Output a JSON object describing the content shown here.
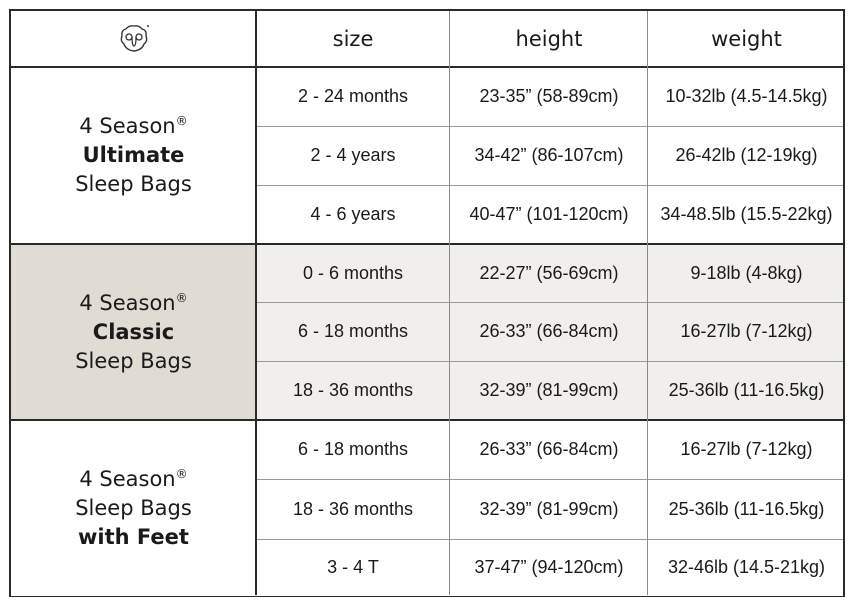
{
  "header": {
    "logo_icon": "sheep-face-icon",
    "columns": [
      "size",
      "height",
      "weight"
    ]
  },
  "colors": {
    "classic_label_bg": "#e0dbd3",
    "classic_rows_bg": "#f1efeb",
    "border": "#2a2a2a"
  },
  "groups": [
    {
      "line1": "4 Season",
      "reg": "®",
      "line2": "Ultimate",
      "line3": "Sleep Bags",
      "bold_line": 2,
      "rows": [
        {
          "size": "2 - 24 months",
          "height": "23-35” (58-89cm)",
          "weight": "10-32lb (4.5-14.5kg)"
        },
        {
          "size": "2 - 4 years",
          "height": "34-42” (86-107cm)",
          "weight": "26-42lb (12-19kg)"
        },
        {
          "size": "4 - 6 years",
          "height": "40-47” (101-120cm)",
          "weight": "34-48.5lb (15.5-22kg)"
        }
      ]
    },
    {
      "line1": "4 Season",
      "reg": "®",
      "line2": "Classic",
      "line3": "Sleep Bags",
      "bold_line": 2,
      "rows": [
        {
          "size": "0 - 6 months",
          "height": "22-27” (56-69cm)",
          "weight": "9-18lb (4-8kg)"
        },
        {
          "size": "6 - 18 months",
          "height": "26-33” (66-84cm)",
          "weight": "16-27lb (7-12kg)"
        },
        {
          "size": "18 - 36 months",
          "height": "32-39” (81-99cm)",
          "weight": "25-36lb (11-16.5kg)"
        }
      ]
    },
    {
      "line1": "4 Season",
      "reg": "®",
      "line2": "Sleep Bags",
      "line3": "with Feet",
      "bold_line": 3,
      "rows": [
        {
          "size": "6 - 18 months",
          "height": "26-33” (66-84cm)",
          "weight": "16-27lb (7-12kg)"
        },
        {
          "size": "18 - 36 months",
          "height": "32-39” (81-99cm)",
          "weight": "25-36lb (11-16.5kg)"
        },
        {
          "size": "3 - 4 T",
          "height": "37-47” (94-120cm)",
          "weight": "32-46lb (14.5-21kg)"
        }
      ]
    }
  ]
}
